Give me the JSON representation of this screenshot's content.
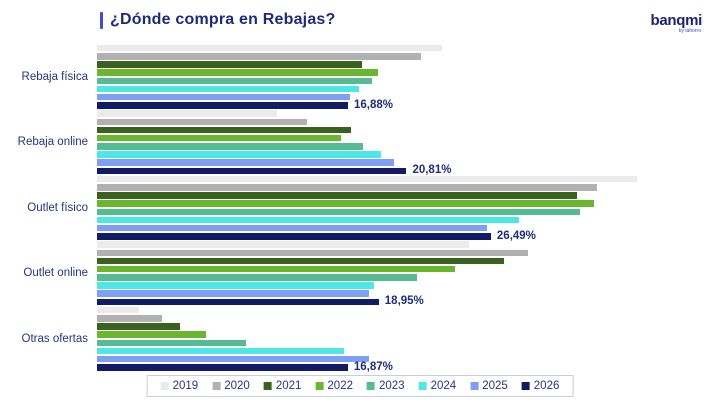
{
  "header": {
    "title": "¿Dónde compra en Rebajas?",
    "logo": {
      "brand": "banqmi",
      "tagline": "by iahorro"
    }
  },
  "colors": {
    "accent_bar": "#4150c8",
    "title_text": "#1e2a7a",
    "category_text": "#27357e",
    "value_text": "#1f2d7a",
    "legend_border": "#c9cede",
    "background": "#ffffff"
  },
  "chart_data": {
    "type": "bar",
    "orientation": "horizontal",
    "title": "¿Dónde compra en Rebajas?",
    "categories": [
      "Rebaja física",
      "Rebaja online",
      "Outlet físico",
      "Outlet online",
      "Otras ofertas"
    ],
    "series": [
      {
        "name": "2019",
        "color": "#ebebeb",
        "values": [
          23.2,
          12.1,
          36.3,
          25.0,
          2.8
        ]
      },
      {
        "name": "2020",
        "color": "#b1b1b1",
        "values": [
          21.8,
          14.1,
          33.6,
          29.0,
          4.4
        ]
      },
      {
        "name": "2021",
        "color": "#39611f",
        "values": [
          17.8,
          17.1,
          32.3,
          27.4,
          5.6
        ]
      },
      {
        "name": "2022",
        "color": "#6cb52e",
        "values": [
          18.9,
          16.4,
          33.4,
          24.1,
          7.3
        ]
      },
      {
        "name": "2023",
        "color": "#55bb92",
        "values": [
          18.5,
          17.9,
          32.5,
          21.5,
          10.0
        ]
      },
      {
        "name": "2024",
        "color": "#4ee8e4",
        "values": [
          17.6,
          19.1,
          28.4,
          18.6,
          16.6
        ]
      },
      {
        "name": "2025",
        "color": "#7e9ff3",
        "values": [
          17.0,
          20.0,
          26.2,
          18.3,
          18.3
        ]
      },
      {
        "name": "2026",
        "color": "#131b66",
        "values": [
          16.88,
          20.81,
          26.49,
          18.95,
          16.87
        ]
      }
    ],
    "value_labels": {
      "series": "2026",
      "values": [
        "16,88%",
        "20,81%",
        "26,49%",
        "18,95%",
        "16,87%"
      ]
    },
    "xlim": [
      0,
      38
    ],
    "grid": false,
    "legend_position": "bottom"
  }
}
